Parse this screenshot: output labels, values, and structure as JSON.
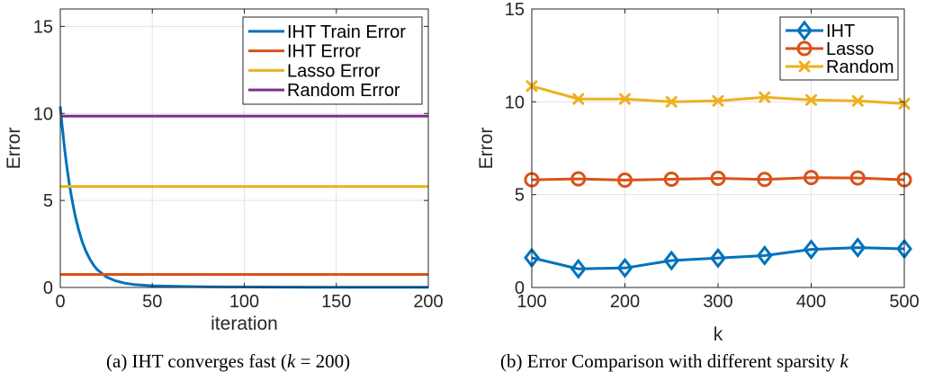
{
  "chart_data": [
    {
      "type": "line",
      "title": "",
      "xlabel": "iteration",
      "ylabel": "Error",
      "xlim": [
        0,
        200
      ],
      "ylim": [
        0,
        16
      ],
      "xticks": [
        0,
        50,
        100,
        150,
        200
      ],
      "yticks": [
        0,
        5,
        10,
        15
      ],
      "grid": true,
      "legend_position": "top-right",
      "series": [
        {
          "name": "IHT Train Error",
          "color": "#0072BD",
          "x": [
            0,
            1,
            2,
            3,
            4,
            5,
            6,
            8,
            10,
            12,
            14,
            16,
            18,
            20,
            25,
            30,
            35,
            40,
            50,
            60,
            70,
            80,
            100,
            120,
            150,
            200
          ],
          "y": [
            10.4,
            9.3,
            8.3,
            7.4,
            6.6,
            5.9,
            5.25,
            4.15,
            3.3,
            2.6,
            2.07,
            1.64,
            1.3,
            1.03,
            0.61,
            0.38,
            0.25,
            0.17,
            0.1,
            0.07,
            0.05,
            0.04,
            0.03,
            0.02,
            0.015,
            0.01
          ]
        },
        {
          "name": "IHT Error",
          "color": "#D95319",
          "x": [
            0,
            200
          ],
          "y": [
            0.75,
            0.75
          ]
        },
        {
          "name": "Lasso Error",
          "color": "#EDB120",
          "x": [
            0,
            200
          ],
          "y": [
            5.8,
            5.8
          ]
        },
        {
          "name": "Random Error",
          "color": "#7E2F8E",
          "x": [
            0,
            200
          ],
          "y": [
            9.85,
            9.85
          ]
        }
      ]
    },
    {
      "type": "line",
      "title": "",
      "xlabel": "k",
      "ylabel": "Error",
      "xlim": [
        100,
        500
      ],
      "ylim": [
        0,
        15
      ],
      "xticks": [
        100,
        200,
        300,
        400,
        500
      ],
      "yticks": [
        0,
        5,
        10,
        15
      ],
      "grid": true,
      "legend_position": "top-right",
      "x": [
        100,
        150,
        200,
        250,
        300,
        350,
        400,
        450,
        500
      ],
      "series": [
        {
          "name": "IHT",
          "color": "#0072BD",
          "marker": "diamond",
          "values": [
            1.6,
            1.0,
            1.05,
            1.45,
            1.58,
            1.72,
            2.05,
            2.15,
            2.08
          ]
        },
        {
          "name": "Lasso",
          "color": "#D95319",
          "marker": "circle",
          "values": [
            5.8,
            5.85,
            5.78,
            5.83,
            5.88,
            5.82,
            5.92,
            5.9,
            5.8
          ]
        },
        {
          "name": "Random",
          "color": "#EDB120",
          "marker": "x",
          "values": [
            10.85,
            10.15,
            10.15,
            10.0,
            10.05,
            10.25,
            10.1,
            10.05,
            9.9
          ]
        }
      ]
    }
  ],
  "captions": {
    "a_prefix": "(a) IHT converges fast (",
    "a_math": "k",
    "a_suffix": " = 200)",
    "b_prefix": "(b) Error Comparison with different sparsity ",
    "b_math": "k"
  }
}
